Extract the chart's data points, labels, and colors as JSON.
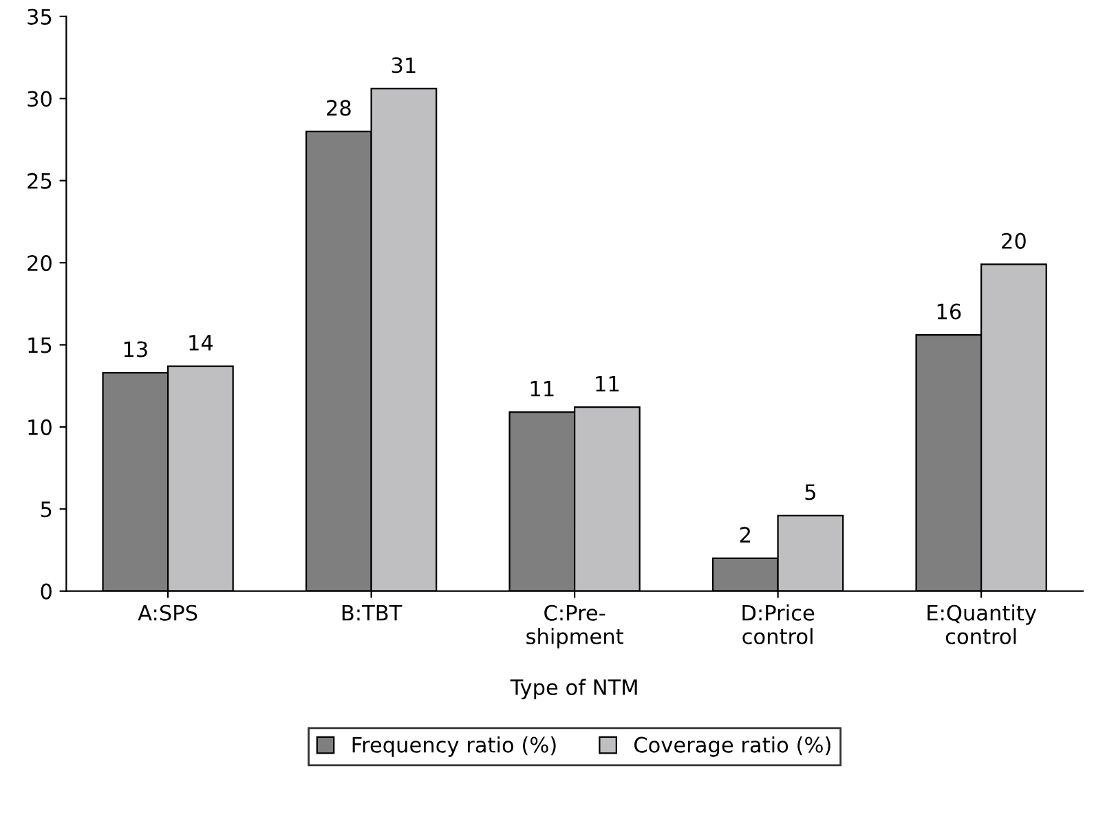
{
  "chart_data": {
    "type": "bar",
    "xlabel": "Type of NTM",
    "categories": [
      "A:SPS",
      "B:TBT",
      "C:Pre-\nshipment",
      "D:Price\ncontrol",
      "E:Quantity\ncontrol"
    ],
    "series": [
      {
        "name": "Frequency ratio (%)",
        "color": "#7f7f80",
        "values": [
          13.3,
          28.0,
          10.9,
          2.0,
          15.6
        ],
        "value_labels": [
          "13",
          "28",
          "11",
          "2",
          "16"
        ]
      },
      {
        "name": "Coverage ratio (%)",
        "color": "#bfbfc1",
        "values": [
          13.7,
          30.6,
          11.2,
          4.6,
          19.9
        ],
        "value_labels": [
          "14",
          "31",
          "11",
          "5",
          "20"
        ]
      }
    ],
    "ylim": [
      0,
      35
    ],
    "yticks": [
      0,
      5,
      10,
      15,
      20,
      25,
      30,
      35
    ],
    "grid": false,
    "legend": "bottom"
  }
}
